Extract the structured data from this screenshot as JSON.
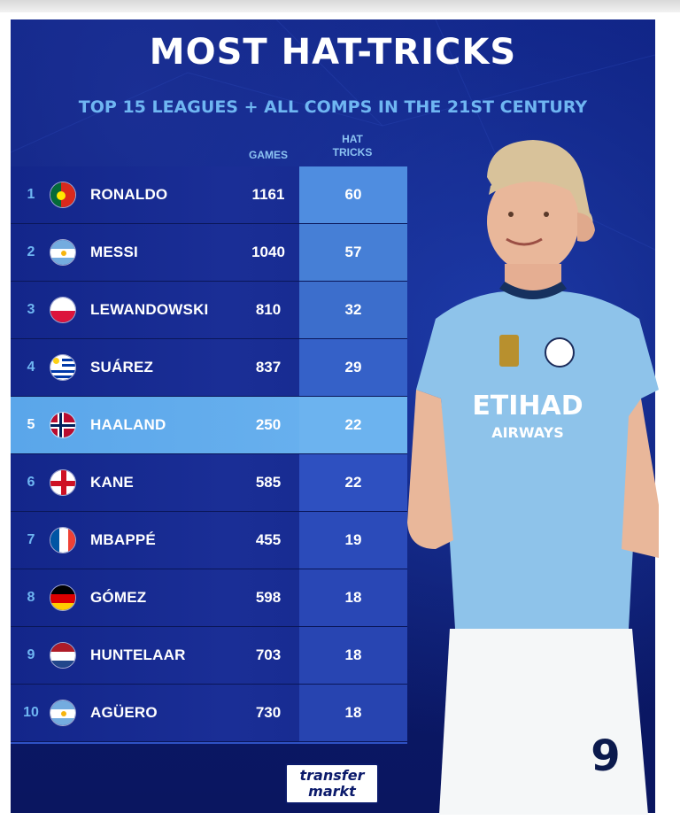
{
  "title": "MOST HAT-TRICKS",
  "subtitle": "TOP 15 LEAGUES + ALL COMPS IN THE 21ST CENTURY",
  "columns": {
    "games": "GAMES",
    "hat_tricks_line1": "HAT",
    "hat_tricks_line2": "TRICKS"
  },
  "rows": [
    {
      "rank": "1",
      "name": "RONALDO",
      "flag": "portugal-flag",
      "games": "1161",
      "hat_tricks": "60"
    },
    {
      "rank": "2",
      "name": "MESSI",
      "flag": "argentina-flag",
      "games": "1040",
      "hat_tricks": "57"
    },
    {
      "rank": "3",
      "name": "LEWANDOWSKI",
      "flag": "poland-flag",
      "games": "810",
      "hat_tricks": "32"
    },
    {
      "rank": "4",
      "name": "SUÁREZ",
      "flag": "uruguay-flag",
      "games": "837",
      "hat_tricks": "29"
    },
    {
      "rank": "5",
      "name": "HAALAND",
      "flag": "norway-flag",
      "games": "250",
      "hat_tricks": "22",
      "highlighted": true
    },
    {
      "rank": "6",
      "name": "KANE",
      "flag": "england-flag",
      "games": "585",
      "hat_tricks": "22"
    },
    {
      "rank": "7",
      "name": "MBAPPÉ",
      "flag": "france-flag",
      "games": "455",
      "hat_tricks": "19"
    },
    {
      "rank": "8",
      "name": "GÓMEZ",
      "flag": "germany-flag",
      "games": "598",
      "hat_tricks": "18"
    },
    {
      "rank": "9",
      "name": "HUNTELAAR",
      "flag": "netherlands-flag",
      "games": "703",
      "hat_tricks": "18"
    },
    {
      "rank": "10",
      "name": "AGÜERO",
      "flag": "argentina-flag",
      "games": "730",
      "hat_tricks": "18"
    }
  ],
  "logo": {
    "line1": "transfer",
    "line2": "markt"
  },
  "player": {
    "shirt_sponsor": "ETIHAD",
    "shirt_sponsor_sub": "AIRWAYS",
    "shirt_number": "9"
  },
  "colors": {
    "background": "#0f2283",
    "accent_light_blue": "#6fb6f2",
    "highlight_row": "#6cb3ef",
    "hat_column": "#2f52c4",
    "jersey": "#8ec3ea"
  }
}
